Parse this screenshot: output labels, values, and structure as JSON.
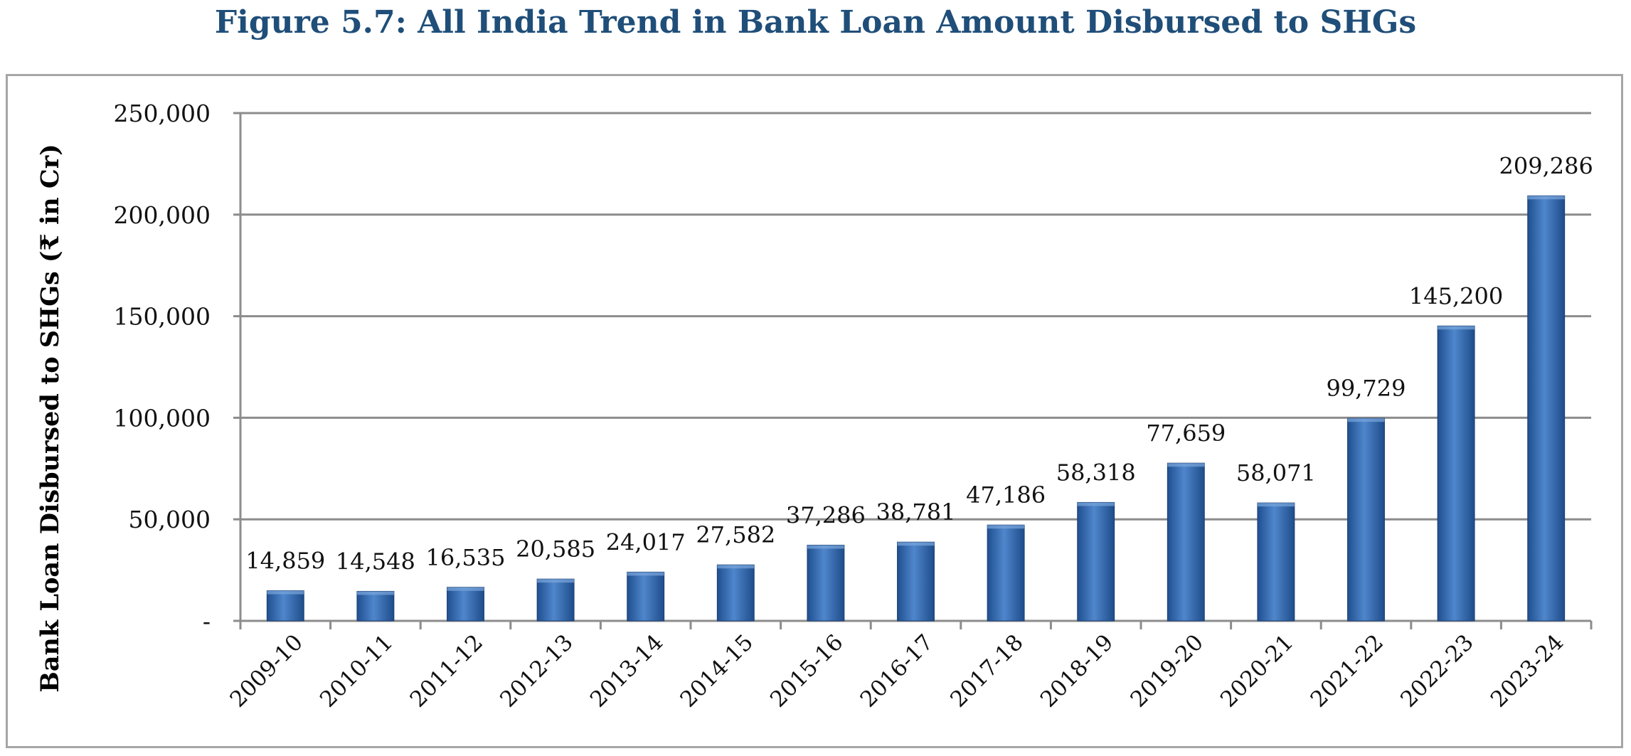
{
  "chart_data": {
    "type": "bar",
    "title": "Figure 5.7:  All India Trend in Bank Loan Amount Disbursed to SHGs",
    "xlabel": "",
    "ylabel": "Bank Loan Disbursed to SHGs (₹ in Cr)",
    "ylim": [
      0,
      250000
    ],
    "yticks": [
      0,
      50000,
      100000,
      150000,
      200000,
      250000
    ],
    "ytick_labels": [
      "-",
      "50,000",
      "100,000",
      "150,000",
      "200,000",
      "250,000"
    ],
    "grid": true,
    "legend": "none",
    "bar_color": "#3a6fb4",
    "categories": [
      "2009-10",
      "2010-11",
      "2011-12",
      "2012-13",
      "2013-14",
      "2014-15",
      "2015-16",
      "2016-17",
      "2017-18",
      "2018-19",
      "2019-20",
      "2020-21",
      "2021-22",
      "2022-23",
      "2023-24"
    ],
    "values": [
      14859,
      14548,
      16535,
      20585,
      24017,
      27582,
      37286,
      38781,
      47186,
      58318,
      77659,
      58071,
      99729,
      145200,
      209286
    ],
    "value_labels": [
      "14,859",
      "14,548",
      "16,535",
      "20,585",
      "24,017",
      "27,582",
      "37,286",
      "38,781",
      "47,186",
      "58,318",
      "77,659",
      "58,071",
      "99,729",
      "145,200",
      "209,286"
    ]
  }
}
